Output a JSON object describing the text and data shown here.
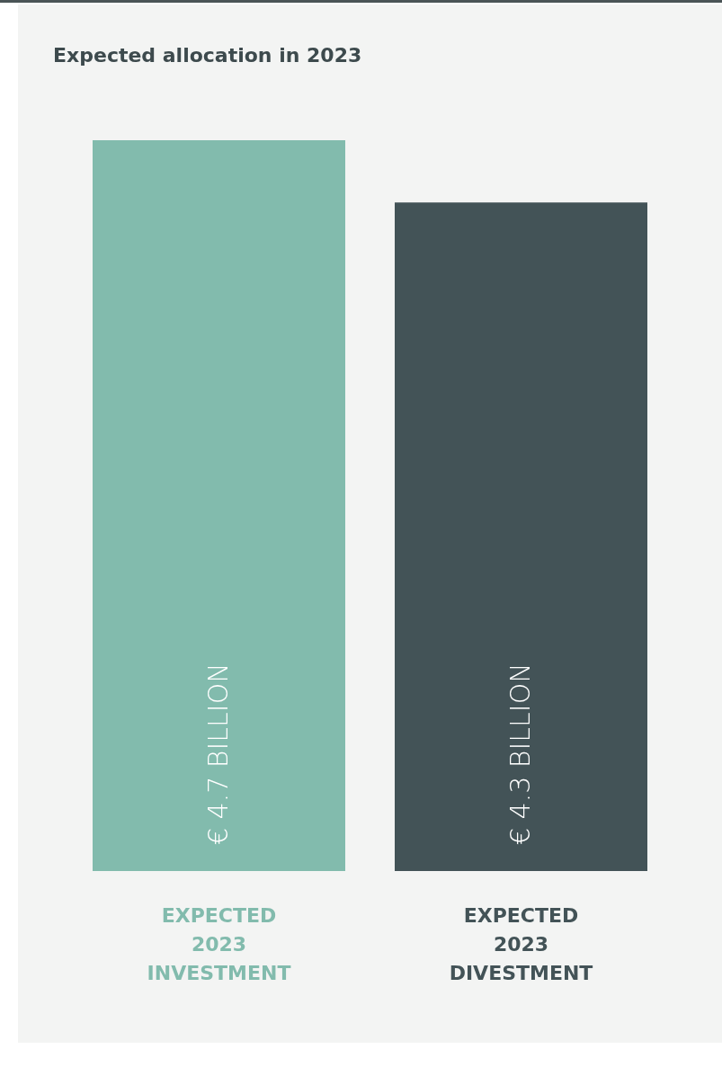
{
  "chart_data": {
    "type": "bar",
    "title": "Expected allocation in 2023",
    "categories": [
      "EXPECTED 2023 INVESTMENT",
      "EXPECTED 2023 DIVESTMENT"
    ],
    "values": [
      4.7,
      4.3
    ],
    "colors": [
      "#82bbad",
      "#435357"
    ],
    "value_labels": [
      "€ 4.7 BILLION",
      "€ 4.3 BILLION"
    ]
  }
}
